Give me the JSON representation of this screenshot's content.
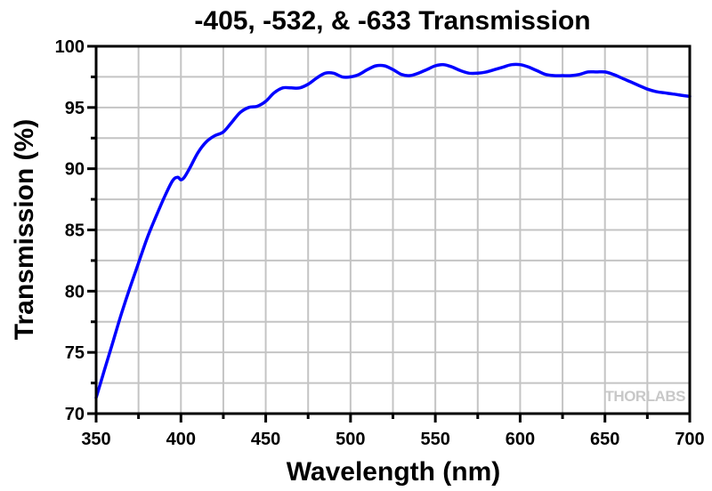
{
  "chart_data": {
    "type": "line",
    "title": "-405, -532, & -633 Transmission",
    "xlabel": "Wavelength (nm)",
    "ylabel": "Transmission (%)",
    "xlim": [
      350,
      700
    ],
    "ylim": [
      70,
      100
    ],
    "xticks": [
      350,
      400,
      450,
      500,
      550,
      600,
      650,
      700
    ],
    "yticks": [
      70,
      75,
      80,
      85,
      90,
      95,
      100
    ],
    "grid": true,
    "watermark": "THORLABS",
    "series": [
      {
        "name": "Transmission",
        "color": "#0000ff",
        "x": [
          350,
          355,
          360,
          365,
          370,
          375,
          380,
          385,
          390,
          395,
          398,
          400,
          402,
          405,
          410,
          415,
          420,
          425,
          430,
          435,
          440,
          445,
          450,
          455,
          460,
          465,
          470,
          475,
          480,
          485,
          490,
          495,
          500,
          505,
          510,
          515,
          520,
          525,
          530,
          535,
          540,
          545,
          550,
          555,
          560,
          565,
          570,
          575,
          580,
          585,
          590,
          595,
          600,
          605,
          610,
          615,
          620,
          625,
          630,
          635,
          640,
          645,
          650,
          655,
          660,
          665,
          670,
          675,
          680,
          685,
          690,
          695,
          700
        ],
        "y": [
          71.3,
          73.6,
          75.9,
          78.2,
          80.3,
          82.3,
          84.3,
          86.0,
          87.6,
          89.0,
          89.3,
          89.1,
          89.3,
          90.0,
          91.3,
          92.2,
          92.7,
          93.0,
          93.8,
          94.6,
          95.0,
          95.1,
          95.5,
          96.2,
          96.6,
          96.6,
          96.6,
          96.9,
          97.4,
          97.8,
          97.8,
          97.5,
          97.5,
          97.7,
          98.1,
          98.4,
          98.4,
          98.1,
          97.7,
          97.6,
          97.8,
          98.1,
          98.4,
          98.5,
          98.3,
          98.0,
          97.8,
          97.8,
          97.9,
          98.1,
          98.3,
          98.5,
          98.5,
          98.3,
          98.0,
          97.7,
          97.6,
          97.6,
          97.6,
          97.7,
          97.9,
          97.9,
          97.9,
          97.7,
          97.4,
          97.1,
          96.8,
          96.5,
          96.3,
          96.2,
          96.1,
          96.0,
          95.9
        ]
      }
    ]
  }
}
